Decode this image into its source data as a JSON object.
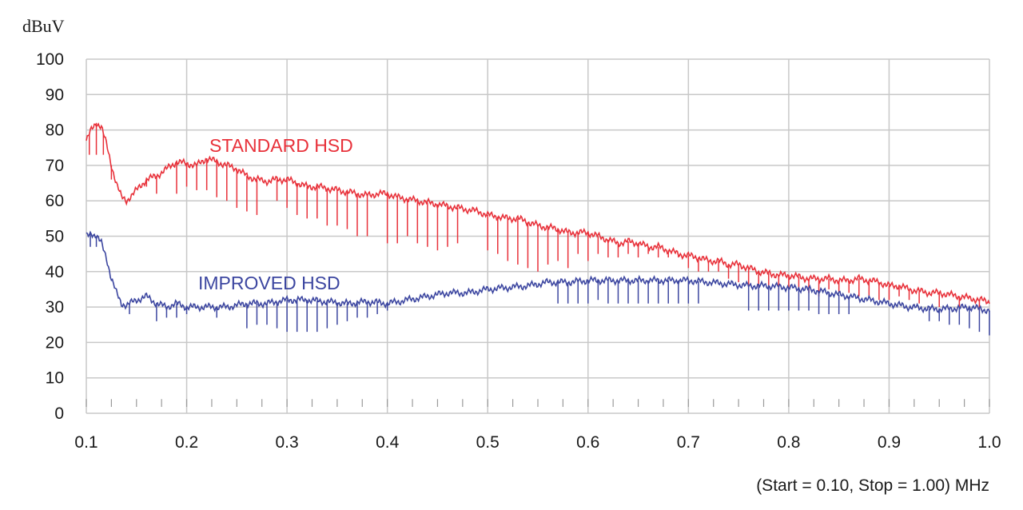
{
  "chart_data": {
    "type": "line",
    "ylabel": "dBuV",
    "footer": "(Start = 0.10, Stop = 1.00) MHz",
    "xlim": [
      0.1,
      1.0
    ],
    "ylim": [
      0,
      100
    ],
    "x_ticks": [
      "0.1",
      "0.2",
      "0.3",
      "0.4",
      "0.5",
      "0.6",
      "0.7",
      "0.8",
      "0.9",
      "1.0"
    ],
    "y_ticks": [
      "0",
      "10",
      "20",
      "30",
      "40",
      "50",
      "60",
      "70",
      "80",
      "90",
      "100"
    ],
    "grid": true,
    "series": [
      {
        "name": "STANDARD HSD",
        "color": "#e8313a",
        "envelope": [
          [
            0.1,
            77
          ],
          [
            0.105,
            80
          ],
          [
            0.11,
            82
          ],
          [
            0.115,
            81
          ],
          [
            0.12,
            76
          ],
          [
            0.125,
            70
          ],
          [
            0.13,
            65
          ],
          [
            0.135,
            61
          ],
          [
            0.14,
            60
          ],
          [
            0.15,
            63
          ],
          [
            0.16,
            66
          ],
          [
            0.17,
            67
          ],
          [
            0.18,
            69
          ],
          [
            0.19,
            71
          ],
          [
            0.2,
            70.5
          ],
          [
            0.21,
            70
          ],
          [
            0.22,
            72
          ],
          [
            0.23,
            71
          ],
          [
            0.24,
            70
          ],
          [
            0.25,
            69
          ],
          [
            0.26,
            67
          ],
          [
            0.27,
            66
          ],
          [
            0.28,
            65.5
          ],
          [
            0.29,
            66
          ],
          [
            0.3,
            66
          ],
          [
            0.31,
            65
          ],
          [
            0.32,
            64
          ],
          [
            0.33,
            64
          ],
          [
            0.34,
            63.5
          ],
          [
            0.35,
            63
          ],
          [
            0.36,
            62.5
          ],
          [
            0.37,
            62
          ],
          [
            0.38,
            61.5
          ],
          [
            0.39,
            62
          ],
          [
            0.4,
            62
          ],
          [
            0.41,
            61
          ],
          [
            0.42,
            60.5
          ],
          [
            0.43,
            60
          ],
          [
            0.44,
            59.5
          ],
          [
            0.45,
            59
          ],
          [
            0.46,
            58.5
          ],
          [
            0.47,
            58
          ],
          [
            0.48,
            57.5
          ],
          [
            0.49,
            57
          ],
          [
            0.5,
            56
          ],
          [
            0.51,
            55.5
          ],
          [
            0.52,
            55
          ],
          [
            0.53,
            55
          ],
          [
            0.54,
            54
          ],
          [
            0.55,
            53
          ],
          [
            0.56,
            52.5
          ],
          [
            0.57,
            52
          ],
          [
            0.58,
            51
          ],
          [
            0.59,
            51
          ],
          [
            0.6,
            51
          ],
          [
            0.61,
            50
          ],
          [
            0.62,
            49
          ],
          [
            0.63,
            48
          ],
          [
            0.64,
            48.5
          ],
          [
            0.65,
            48
          ],
          [
            0.66,
            47
          ],
          [
            0.67,
            47
          ],
          [
            0.68,
            46
          ],
          [
            0.69,
            45
          ],
          [
            0.7,
            44.5
          ],
          [
            0.71,
            44
          ],
          [
            0.72,
            43
          ],
          [
            0.73,
            43
          ],
          [
            0.74,
            42
          ],
          [
            0.75,
            42
          ],
          [
            0.76,
            41
          ],
          [
            0.77,
            40
          ],
          [
            0.78,
            39.5
          ],
          [
            0.79,
            39
          ],
          [
            0.8,
            39
          ],
          [
            0.81,
            38.5
          ],
          [
            0.82,
            38
          ],
          [
            0.83,
            38
          ],
          [
            0.84,
            38
          ],
          [
            0.85,
            37.5
          ],
          [
            0.86,
            37.5
          ],
          [
            0.87,
            38
          ],
          [
            0.88,
            37.5
          ],
          [
            0.89,
            37
          ],
          [
            0.9,
            36
          ],
          [
            0.91,
            36
          ],
          [
            0.92,
            35
          ],
          [
            0.93,
            34.5
          ],
          [
            0.94,
            34
          ],
          [
            0.95,
            34
          ],
          [
            0.96,
            33.5
          ],
          [
            0.97,
            33
          ],
          [
            0.98,
            32.5
          ],
          [
            0.99,
            32
          ],
          [
            1.0,
            31.5
          ]
        ],
        "dips": [
          [
            0.103,
            73
          ],
          [
            0.11,
            73
          ],
          [
            0.117,
            73
          ],
          [
            0.125,
            66
          ],
          [
            0.16,
            64
          ],
          [
            0.17,
            62
          ],
          [
            0.19,
            62
          ],
          [
            0.2,
            64
          ],
          [
            0.21,
            63
          ],
          [
            0.22,
            63
          ],
          [
            0.23,
            61
          ],
          [
            0.24,
            60
          ],
          [
            0.25,
            58
          ],
          [
            0.26,
            57
          ],
          [
            0.27,
            56
          ],
          [
            0.29,
            60
          ],
          [
            0.3,
            58
          ],
          [
            0.31,
            56
          ],
          [
            0.32,
            55
          ],
          [
            0.33,
            55
          ],
          [
            0.34,
            53
          ],
          [
            0.35,
            53
          ],
          [
            0.36,
            52
          ],
          [
            0.37,
            50
          ],
          [
            0.38,
            50
          ],
          [
            0.4,
            48
          ],
          [
            0.41,
            48
          ],
          [
            0.42,
            50
          ],
          [
            0.43,
            48
          ],
          [
            0.44,
            47
          ],
          [
            0.45,
            46
          ],
          [
            0.46,
            47
          ],
          [
            0.47,
            48
          ],
          [
            0.5,
            46
          ],
          [
            0.51,
            45
          ],
          [
            0.52,
            43
          ],
          [
            0.53,
            42
          ],
          [
            0.54,
            41
          ],
          [
            0.55,
            40
          ],
          [
            0.56,
            42
          ],
          [
            0.57,
            43
          ],
          [
            0.58,
            41
          ],
          [
            0.59,
            45
          ],
          [
            0.6,
            43
          ],
          [
            0.61,
            45
          ],
          [
            0.62,
            44
          ],
          [
            0.63,
            44
          ],
          [
            0.64,
            45
          ],
          [
            0.65,
            44
          ],
          [
            0.66,
            45
          ],
          [
            0.67,
            44
          ],
          [
            0.68,
            44
          ],
          [
            0.69,
            44
          ],
          [
            0.7,
            41
          ],
          [
            0.71,
            40
          ],
          [
            0.72,
            40
          ],
          [
            0.73,
            40
          ],
          [
            0.74,
            38
          ],
          [
            0.75,
            37
          ],
          [
            0.76,
            36
          ],
          [
            0.77,
            35
          ],
          [
            0.78,
            36
          ],
          [
            0.79,
            35
          ],
          [
            0.8,
            35
          ],
          [
            0.81,
            35
          ],
          [
            0.82,
            34
          ],
          [
            0.83,
            33
          ],
          [
            0.84,
            35
          ],
          [
            0.85,
            34
          ],
          [
            0.86,
            34
          ],
          [
            0.87,
            33
          ],
          [
            0.88,
            33
          ],
          [
            0.89,
            32
          ],
          [
            0.9,
            32
          ],
          [
            0.91,
            33
          ],
          [
            0.92,
            32
          ],
          [
            0.93,
            31
          ],
          [
            0.95,
            30
          ],
          [
            0.97,
            30
          ],
          [
            0.99,
            29
          ]
        ]
      },
      {
        "name": "IMPROVED HSD",
        "color": "#3c46a0",
        "envelope": [
          [
            0.1,
            50
          ],
          [
            0.105,
            51
          ],
          [
            0.11,
            50
          ],
          [
            0.115,
            48
          ],
          [
            0.12,
            44
          ],
          [
            0.125,
            38
          ],
          [
            0.13,
            34
          ],
          [
            0.135,
            31
          ],
          [
            0.14,
            30.5
          ],
          [
            0.15,
            32
          ],
          [
            0.16,
            33
          ],
          [
            0.17,
            31
          ],
          [
            0.18,
            30
          ],
          [
            0.19,
            31
          ],
          [
            0.2,
            30
          ],
          [
            0.22,
            30
          ],
          [
            0.24,
            30
          ],
          [
            0.26,
            31
          ],
          [
            0.28,
            31
          ],
          [
            0.3,
            32
          ],
          [
            0.32,
            32
          ],
          [
            0.34,
            31.5
          ],
          [
            0.36,
            31
          ],
          [
            0.38,
            31.5
          ],
          [
            0.4,
            31
          ],
          [
            0.42,
            32
          ],
          [
            0.44,
            33
          ],
          [
            0.46,
            34
          ],
          [
            0.48,
            34
          ],
          [
            0.5,
            35
          ],
          [
            0.52,
            35.5
          ],
          [
            0.54,
            36
          ],
          [
            0.56,
            37
          ],
          [
            0.58,
            37
          ],
          [
            0.6,
            37.5
          ],
          [
            0.62,
            37.5
          ],
          [
            0.64,
            37.5
          ],
          [
            0.66,
            37.5
          ],
          [
            0.68,
            37.5
          ],
          [
            0.7,
            37.5
          ],
          [
            0.72,
            37
          ],
          [
            0.74,
            36.5
          ],
          [
            0.76,
            36
          ],
          [
            0.78,
            36
          ],
          [
            0.8,
            35.5
          ],
          [
            0.82,
            35
          ],
          [
            0.84,
            34
          ],
          [
            0.86,
            33
          ],
          [
            0.88,
            32
          ],
          [
            0.9,
            31
          ],
          [
            0.92,
            30
          ],
          [
            0.94,
            29.5
          ],
          [
            0.96,
            29.5
          ],
          [
            0.98,
            30
          ],
          [
            1.0,
            29
          ]
        ],
        "dips": [
          [
            0.104,
            47
          ],
          [
            0.11,
            47
          ],
          [
            0.143,
            28
          ],
          [
            0.17,
            26
          ],
          [
            0.18,
            27
          ],
          [
            0.19,
            27
          ],
          [
            0.2,
            28
          ],
          [
            0.23,
            27
          ],
          [
            0.26,
            24
          ],
          [
            0.27,
            25
          ],
          [
            0.28,
            25
          ],
          [
            0.29,
            24
          ],
          [
            0.3,
            23
          ],
          [
            0.31,
            23
          ],
          [
            0.32,
            23
          ],
          [
            0.33,
            23
          ],
          [
            0.34,
            24
          ],
          [
            0.35,
            25
          ],
          [
            0.36,
            26
          ],
          [
            0.37,
            27
          ],
          [
            0.38,
            27
          ],
          [
            0.39,
            28
          ],
          [
            0.4,
            29
          ],
          [
            0.57,
            31
          ],
          [
            0.58,
            31
          ],
          [
            0.59,
            31
          ],
          [
            0.6,
            31
          ],
          [
            0.61,
            32
          ],
          [
            0.62,
            31
          ],
          [
            0.63,
            31
          ],
          [
            0.64,
            31
          ],
          [
            0.65,
            31
          ],
          [
            0.66,
            31
          ],
          [
            0.67,
            31
          ],
          [
            0.68,
            31
          ],
          [
            0.69,
            31
          ],
          [
            0.7,
            31
          ],
          [
            0.71,
            31
          ],
          [
            0.76,
            29
          ],
          [
            0.77,
            29
          ],
          [
            0.78,
            29
          ],
          [
            0.79,
            29
          ],
          [
            0.8,
            29
          ],
          [
            0.81,
            29
          ],
          [
            0.82,
            29
          ],
          [
            0.83,
            28
          ],
          [
            0.84,
            28
          ],
          [
            0.85,
            28
          ],
          [
            0.86,
            28
          ],
          [
            0.94,
            26
          ],
          [
            0.95,
            26
          ],
          [
            0.96,
            25
          ],
          [
            0.97,
            25
          ],
          [
            0.98,
            24
          ],
          [
            0.99,
            23
          ],
          [
            1.0,
            22
          ]
        ]
      }
    ]
  }
}
